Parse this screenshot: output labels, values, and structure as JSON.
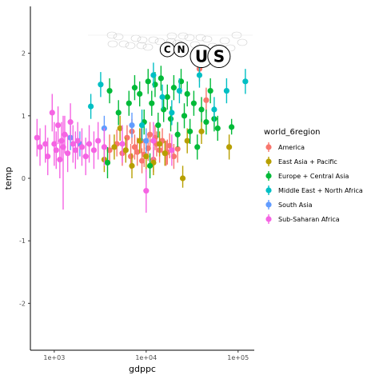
{
  "chart_data": {
    "type": "scatter",
    "title": "",
    "xlabel": "gdppc",
    "ylabel": "temp",
    "x_scale": "log10",
    "xlim": [
      550,
      150000
    ],
    "ylim": [
      -2.75,
      2.75
    ],
    "x_ticks": [
      1000,
      10000,
      100000
    ],
    "x_tick_labels": [
      "1e+03",
      "1e+04",
      "1e+05"
    ],
    "y_ticks": [
      -2,
      -1,
      0,
      1,
      2
    ],
    "y_tick_labels": [
      "-2",
      "-1",
      "0",
      "1",
      "2"
    ],
    "grid": false,
    "legend": {
      "title": "world_6region",
      "placement": "right",
      "entries": [
        {
          "name": "America",
          "color": "#F8766D"
        },
        {
          "name": "East Asia + Pacific",
          "color": "#B79F00"
        },
        {
          "name": "Europe + Central Asia",
          "color": "#00BA38"
        },
        {
          "name": "Middle East + North Africa",
          "color": "#00BFC4"
        },
        {
          "name": "South Asia",
          "color": "#619CFF"
        },
        {
          "name": "Sub-Saharan Africa",
          "color": "#F564E3"
        }
      ]
    },
    "annotations": [
      {
        "label": "C",
        "x": 17000,
        "y": 2.06,
        "size": "small"
      },
      {
        "label": "N",
        "x": 24000,
        "y": 2.06,
        "size": "small"
      },
      {
        "label": "U",
        "x": 40000,
        "y": 1.95,
        "size": "large"
      },
      {
        "label": "S",
        "x": 62000,
        "y": 1.95,
        "size": "large"
      }
    ],
    "series": [
      {
        "name": "America",
        "color": "#F8766D",
        "points": [
          {
            "x": 4000,
            "y": 0.45,
            "lo": 0.25,
            "hi": 0.7
          },
          {
            "x": 4800,
            "y": 0.55,
            "lo": 0.35,
            "hi": 0.78
          },
          {
            "x": 5500,
            "y": 0.4,
            "lo": 0.2,
            "hi": 0.6
          },
          {
            "x": 6200,
            "y": 0.65,
            "lo": 0.45,
            "hi": 0.85
          },
          {
            "x": 6800,
            "y": 0.35,
            "lo": 0.15,
            "hi": 0.55
          },
          {
            "x": 7500,
            "y": 0.5,
            "lo": 0.3,
            "hi": 0.7
          },
          {
            "x": 8000,
            "y": 0.42,
            "lo": 0.2,
            "hi": 0.65
          },
          {
            "x": 8800,
            "y": 0.6,
            "lo": 0.4,
            "hi": 0.8
          },
          {
            "x": 9500,
            "y": 0.38,
            "lo": 0.18,
            "hi": 0.58
          },
          {
            "x": 10500,
            "y": 0.48,
            "lo": 0.28,
            "hi": 0.68
          },
          {
            "x": 11000,
            "y": 0.7,
            "lo": 0.5,
            "hi": 0.9
          },
          {
            "x": 12000,
            "y": 0.3,
            "lo": 0.1,
            "hi": 0.5
          },
          {
            "x": 13000,
            "y": 0.55,
            "lo": 0.35,
            "hi": 0.75
          },
          {
            "x": 14000,
            "y": 0.45,
            "lo": 0.25,
            "hi": 0.65
          },
          {
            "x": 15000,
            "y": 0.6,
            "lo": 0.4,
            "hi": 0.8
          },
          {
            "x": 16500,
            "y": 0.4,
            "lo": 0.2,
            "hi": 0.6
          },
          {
            "x": 18000,
            "y": 0.52,
            "lo": 0.32,
            "hi": 0.72
          },
          {
            "x": 20000,
            "y": 0.35,
            "lo": 0.15,
            "hi": 0.55
          },
          {
            "x": 22000,
            "y": 0.47,
            "lo": 0.25,
            "hi": 0.7
          },
          {
            "x": 7000,
            "y": 0.75,
            "lo": 0.55,
            "hi": 0.95
          },
          {
            "x": 9000,
            "y": 0.28,
            "lo": 0.08,
            "hi": 0.48
          },
          {
            "x": 12500,
            "y": 0.65,
            "lo": 0.45,
            "hi": 0.85
          },
          {
            "x": 17000,
            "y": 0.42,
            "lo": 0.22,
            "hi": 0.62
          },
          {
            "x": 38000,
            "y": 1.75,
            "lo": 1.55,
            "hi": 1.95
          },
          {
            "x": 45000,
            "y": 1.25,
            "lo": 1.05,
            "hi": 1.45
          }
        ]
      },
      {
        "name": "East Asia + Pacific",
        "color": "#B79F00",
        "points": [
          {
            "x": 3500,
            "y": 0.3,
            "lo": 0.1,
            "hi": 0.5
          },
          {
            "x": 4500,
            "y": 0.5,
            "lo": 0.3,
            "hi": 0.7
          },
          {
            "x": 5200,
            "y": 0.8,
            "lo": 0.6,
            "hi": 1.0
          },
          {
            "x": 6000,
            "y": 0.45,
            "lo": 0.25,
            "hi": 0.65
          },
          {
            "x": 7000,
            "y": 0.2,
            "lo": 0.0,
            "hi": 0.4
          },
          {
            "x": 8500,
            "y": 0.6,
            "lo": 0.4,
            "hi": 0.8
          },
          {
            "x": 10000,
            "y": 0.35,
            "lo": 0.1,
            "hi": 0.6
          },
          {
            "x": 12000,
            "y": 0.25,
            "lo": 0.05,
            "hi": 0.45
          },
          {
            "x": 14000,
            "y": 0.55,
            "lo": 0.35,
            "hi": 0.75
          },
          {
            "x": 16000,
            "y": 0.4,
            "lo": 0.2,
            "hi": 0.6
          },
          {
            "x": 25000,
            "y": 0.0,
            "lo": -0.15,
            "hi": 0.2
          },
          {
            "x": 28000,
            "y": 0.6,
            "lo": 0.4,
            "hi": 0.8
          },
          {
            "x": 80000,
            "y": 0.5,
            "lo": 0.3,
            "hi": 0.7
          },
          {
            "x": 40000,
            "y": 0.75,
            "lo": 0.55,
            "hi": 0.95
          }
        ]
      },
      {
        "name": "Europe + Central Asia",
        "color": "#00BA38",
        "points": [
          {
            "x": 4000,
            "y": 1.4,
            "lo": 1.2,
            "hi": 1.6
          },
          {
            "x": 3800,
            "y": 0.25,
            "lo": 0.0,
            "hi": 0.5
          },
          {
            "x": 5000,
            "y": 1.05,
            "lo": 0.85,
            "hi": 1.25
          },
          {
            "x": 6500,
            "y": 1.2,
            "lo": 1.0,
            "hi": 1.4
          },
          {
            "x": 7500,
            "y": 1.45,
            "lo": 1.25,
            "hi": 1.65
          },
          {
            "x": 8500,
            "y": 1.35,
            "lo": 1.15,
            "hi": 1.55
          },
          {
            "x": 9500,
            "y": 0.9,
            "lo": 0.7,
            "hi": 1.1
          },
          {
            "x": 10500,
            "y": 1.55,
            "lo": 1.35,
            "hi": 1.75
          },
          {
            "x": 11500,
            "y": 1.2,
            "lo": 1.0,
            "hi": 1.4
          },
          {
            "x": 12500,
            "y": 1.5,
            "lo": 1.3,
            "hi": 1.7
          },
          {
            "x": 13500,
            "y": 0.85,
            "lo": 0.65,
            "hi": 1.05
          },
          {
            "x": 14500,
            "y": 1.6,
            "lo": 1.4,
            "hi": 1.8
          },
          {
            "x": 15500,
            "y": 1.1,
            "lo": 0.9,
            "hi": 1.3
          },
          {
            "x": 17000,
            "y": 1.3,
            "lo": 1.1,
            "hi": 1.5
          },
          {
            "x": 18500,
            "y": 0.95,
            "lo": 0.75,
            "hi": 1.15
          },
          {
            "x": 20000,
            "y": 1.45,
            "lo": 1.25,
            "hi": 1.65
          },
          {
            "x": 22000,
            "y": 0.7,
            "lo": 0.5,
            "hi": 0.9
          },
          {
            "x": 24000,
            "y": 1.55,
            "lo": 1.35,
            "hi": 1.75
          },
          {
            "x": 26000,
            "y": 1.0,
            "lo": 0.8,
            "hi": 1.2
          },
          {
            "x": 28000,
            "y": 1.35,
            "lo": 1.15,
            "hi": 1.55
          },
          {
            "x": 30000,
            "y": 0.75,
            "lo": 0.55,
            "hi": 0.95
          },
          {
            "x": 33000,
            "y": 1.2,
            "lo": 1.0,
            "hi": 1.4
          },
          {
            "x": 36000,
            "y": 0.5,
            "lo": 0.3,
            "hi": 0.7
          },
          {
            "x": 40000,
            "y": 1.1,
            "lo": 0.9,
            "hi": 1.3
          },
          {
            "x": 45000,
            "y": 0.9,
            "lo": 0.7,
            "hi": 1.1
          },
          {
            "x": 50000,
            "y": 1.4,
            "lo": 1.2,
            "hi": 1.6
          },
          {
            "x": 55000,
            "y": 0.95,
            "lo": 0.75,
            "hi": 1.15
          },
          {
            "x": 60000,
            "y": 0.8,
            "lo": 0.6,
            "hi": 1.0
          },
          {
            "x": 85000,
            "y": 0.82,
            "lo": 0.7,
            "hi": 0.95
          },
          {
            "x": 11000,
            "y": 0.2,
            "lo": 0.0,
            "hi": 0.4
          }
        ]
      },
      {
        "name": "Middle East + North Africa",
        "color": "#00BFC4",
        "points": [
          {
            "x": 2500,
            "y": 1.15,
            "lo": 0.95,
            "hi": 1.35
          },
          {
            "x": 3200,
            "y": 1.5,
            "lo": 1.3,
            "hi": 1.7
          },
          {
            "x": 9000,
            "y": 0.85,
            "lo": 0.6,
            "hi": 1.1
          },
          {
            "x": 12000,
            "y": 1.65,
            "lo": 1.45,
            "hi": 1.85
          },
          {
            "x": 15000,
            "y": 1.3,
            "lo": 1.1,
            "hi": 1.5
          },
          {
            "x": 19000,
            "y": 1.05,
            "lo": 0.85,
            "hi": 1.25
          },
          {
            "x": 23000,
            "y": 1.4,
            "lo": 1.2,
            "hi": 1.6
          },
          {
            "x": 38000,
            "y": 1.65,
            "lo": 1.45,
            "hi": 1.85
          },
          {
            "x": 55000,
            "y": 1.1,
            "lo": 0.9,
            "hi": 1.3
          },
          {
            "x": 75000,
            "y": 1.4,
            "lo": 1.2,
            "hi": 1.6
          },
          {
            "x": 120000,
            "y": 1.55,
            "lo": 1.35,
            "hi": 1.75
          }
        ]
      },
      {
        "name": "South Asia",
        "color": "#619CFF",
        "points": [
          {
            "x": 1500,
            "y": 0.65,
            "lo": 0.45,
            "hi": 0.85
          },
          {
            "x": 1900,
            "y": 0.55,
            "lo": 0.35,
            "hi": 0.75
          },
          {
            "x": 3500,
            "y": 0.8,
            "lo": 0.6,
            "hi": 1.0
          },
          {
            "x": 7000,
            "y": 0.85,
            "lo": 0.65,
            "hi": 1.05
          },
          {
            "x": 10000,
            "y": 0.6,
            "lo": 0.4,
            "hi": 0.8
          }
        ]
      },
      {
        "name": "Sub-Saharan Africa",
        "color": "#F564E3",
        "points": [
          {
            "x": 650,
            "y": 0.65,
            "lo": 0.35,
            "hi": 0.95
          },
          {
            "x": 700,
            "y": 0.5,
            "lo": 0.2,
            "hi": 0.8
          },
          {
            "x": 800,
            "y": 0.55,
            "lo": 0.25,
            "hi": 0.85
          },
          {
            "x": 850,
            "y": 0.35,
            "lo": 0.05,
            "hi": 0.65
          },
          {
            "x": 950,
            "y": 1.05,
            "lo": 0.75,
            "hi": 1.35
          },
          {
            "x": 1000,
            "y": 0.55,
            "lo": 0.2,
            "hi": 0.9
          },
          {
            "x": 1050,
            "y": 0.45,
            "lo": 0.15,
            "hi": 0.75
          },
          {
            "x": 1100,
            "y": 0.85,
            "lo": 0.55,
            "hi": 1.15
          },
          {
            "x": 1150,
            "y": 0.3,
            "lo": 0.0,
            "hi": 0.6
          },
          {
            "x": 1200,
            "y": 0.6,
            "lo": 0.3,
            "hi": 0.9
          },
          {
            "x": 1250,
            "y": 0.5,
            "lo": -0.5,
            "hi": 1.0
          },
          {
            "x": 1300,
            "y": 0.7,
            "lo": 0.4,
            "hi": 1.0
          },
          {
            "x": 1400,
            "y": 0.4,
            "lo": 0.1,
            "hi": 0.7
          },
          {
            "x": 1500,
            "y": 0.9,
            "lo": 0.6,
            "hi": 1.2
          },
          {
            "x": 1600,
            "y": 0.55,
            "lo": 0.25,
            "hi": 0.85
          },
          {
            "x": 1700,
            "y": 0.45,
            "lo": 0.15,
            "hi": 0.75
          },
          {
            "x": 1800,
            "y": 0.6,
            "lo": 0.3,
            "hi": 0.9
          },
          {
            "x": 2000,
            "y": 0.5,
            "lo": 0.2,
            "hi": 0.8
          },
          {
            "x": 2200,
            "y": 0.35,
            "lo": 0.05,
            "hi": 0.65
          },
          {
            "x": 2400,
            "y": 0.55,
            "lo": 0.25,
            "hi": 0.85
          },
          {
            "x": 2700,
            "y": 0.45,
            "lo": 0.15,
            "hi": 0.75
          },
          {
            "x": 3000,
            "y": 0.6,
            "lo": 0.3,
            "hi": 0.9
          },
          {
            "x": 3500,
            "y": 0.5,
            "lo": 0.2,
            "hi": 0.8
          },
          {
            "x": 5500,
            "y": 0.55,
            "lo": 0.25,
            "hi": 0.85
          },
          {
            "x": 10000,
            "y": -0.2,
            "lo": -0.55,
            "hi": 0.15
          },
          {
            "x": 12000,
            "y": 0.6,
            "lo": 0.3,
            "hi": 0.9
          },
          {
            "x": 19000,
            "y": 0.45,
            "lo": 0.2,
            "hi": 0.7
          }
        ]
      }
    ]
  }
}
